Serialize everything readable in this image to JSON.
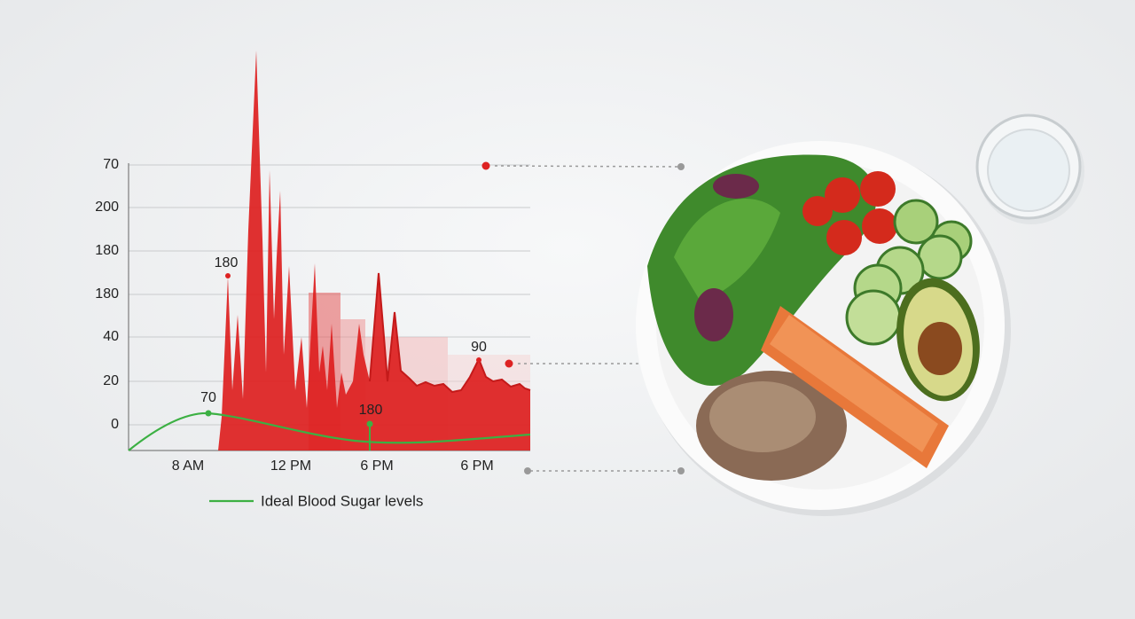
{
  "figure": {
    "y_axis_labels": [
      "70",
      "200",
      "180",
      "180",
      "40",
      "20",
      "0"
    ],
    "x_axis_labels": [
      "8 AM",
      "12 PM",
      "6 PM",
      "6 PM"
    ],
    "annotations": [
      "180",
      "70",
      "180",
      "90"
    ],
    "legend": "Ideal Blood Sugar levels"
  }
}
